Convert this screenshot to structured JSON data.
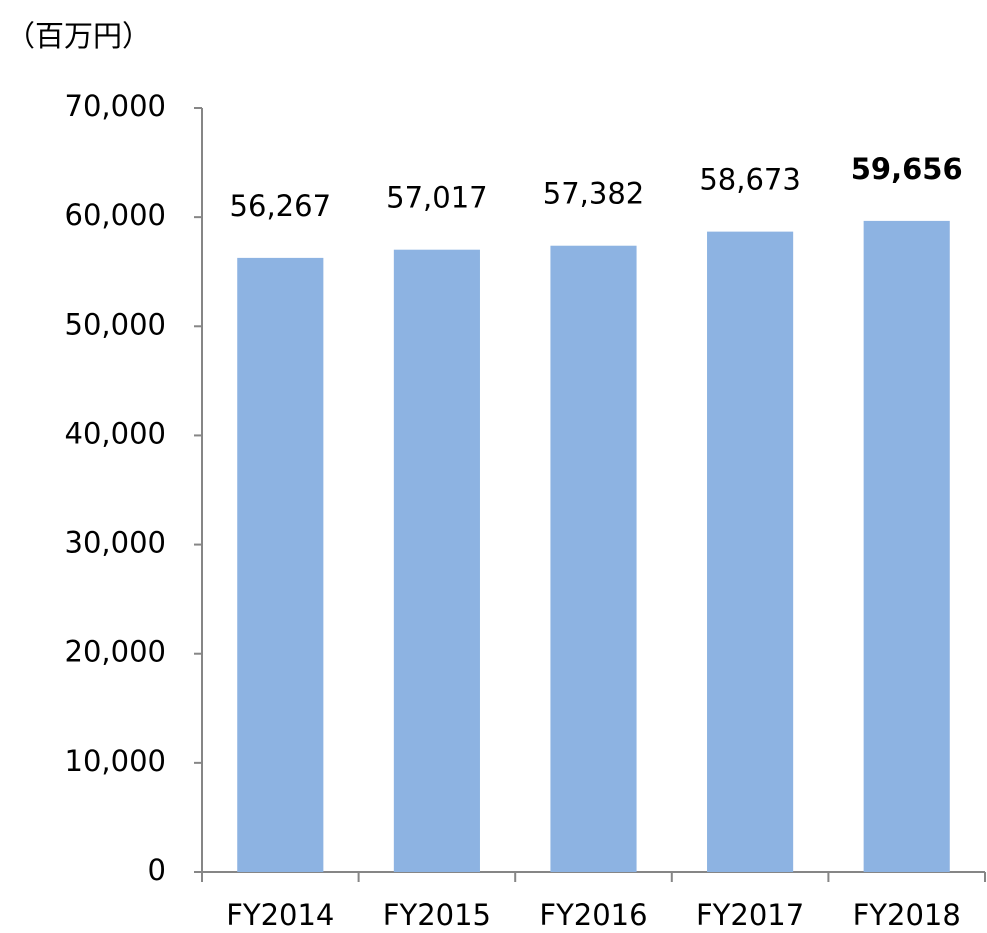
{
  "chart_data": {
    "type": "bar",
    "unit_label": "（百万円）",
    "categories": [
      "FY2014",
      "FY2015",
      "FY2016",
      "FY2017",
      "FY2018"
    ],
    "values": [
      56267,
      57017,
      57382,
      58673,
      59656
    ],
    "value_labels": [
      "56,267",
      "57,017",
      "57,382",
      "58,673",
      "59,656"
    ],
    "color": "#8db3e2",
    "ylim": [
      0,
      70000
    ],
    "yticks": [
      0,
      {
        "value": 10000,
        "label": "10,000"
      },
      {
        "value": 20000,
        "label": "20,000"
      },
      {
        "value": 30000,
        "label": "30,000"
      },
      {
        "value": 40000,
        "label": "40,000"
      },
      {
        "value": 50000,
        "label": "50,000"
      },
      {
        "value": 60000,
        "label": "60,000"
      },
      {
        "value": 70000,
        "label": "70,000"
      }
    ],
    "grid": false
  }
}
